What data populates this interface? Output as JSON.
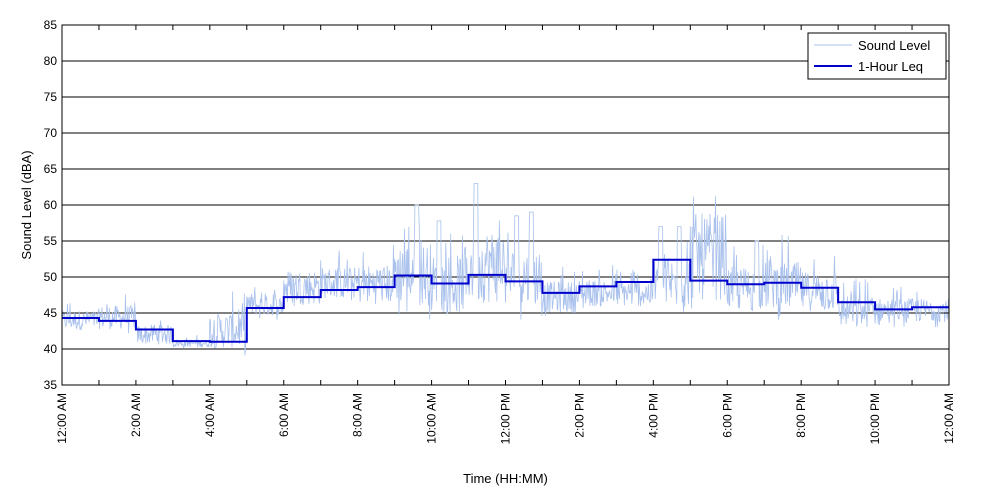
{
  "chart_data": {
    "type": "line",
    "title": "",
    "xlabel": "Time (HH:MM)",
    "ylabel": "Sound Level (dBA)",
    "ylim": [
      35,
      85
    ],
    "yticks": [
      35,
      40,
      45,
      50,
      55,
      60,
      65,
      70,
      75,
      80,
      85
    ],
    "xlim_hours": [
      0,
      24
    ],
    "xticks": [
      {
        "hour": 0,
        "label": "12:00 AM"
      },
      {
        "hour": 2,
        "label": "2:00 AM"
      },
      {
        "hour": 4,
        "label": "4:00 AM"
      },
      {
        "hour": 6,
        "label": "6:00 AM"
      },
      {
        "hour": 8,
        "label": "8:00 AM"
      },
      {
        "hour": 10,
        "label": "10:00 AM"
      },
      {
        "hour": 12,
        "label": "12:00 PM"
      },
      {
        "hour": 14,
        "label": "2:00 PM"
      },
      {
        "hour": 16,
        "label": "4:00 PM"
      },
      {
        "hour": 18,
        "label": "6:00 PM"
      },
      {
        "hour": 20,
        "label": "8:00 PM"
      },
      {
        "hour": 22,
        "label": "10:00 PM"
      },
      {
        "hour": 24,
        "label": "12:00 AM"
      }
    ],
    "grid": "horizontal",
    "legend_position": "top-right",
    "series": [
      {
        "name": "Sound Level",
        "color": "#a9c1ec",
        "hourly_range": [
          [
            42,
            47
          ],
          [
            42,
            48
          ],
          [
            40,
            45
          ],
          [
            40,
            42
          ],
          [
            39,
            48
          ],
          [
            44,
            49
          ],
          [
            45,
            54
          ],
          [
            46,
            54
          ],
          [
            45,
            55
          ],
          [
            44,
            60
          ],
          [
            43,
            58
          ],
          [
            44,
            63
          ],
          [
            44,
            59
          ],
          [
            44,
            52
          ],
          [
            45,
            52
          ],
          [
            45,
            52
          ],
          [
            44,
            57
          ],
          [
            44,
            66
          ],
          [
            44,
            55
          ],
          [
            44,
            56
          ],
          [
            44,
            54
          ],
          [
            42,
            50
          ],
          [
            43,
            49
          ],
          [
            43,
            49
          ]
        ],
        "peaks": [
          {
            "hour": 9.6,
            "value": 60.5
          },
          {
            "hour": 10.2,
            "value": 57.8
          },
          {
            "hour": 11.2,
            "value": 63
          },
          {
            "hour": 12.3,
            "value": 58.5
          },
          {
            "hour": 12.7,
            "value": 59.5
          },
          {
            "hour": 16.2,
            "value": 57
          },
          {
            "hour": 16.7,
            "value": 66
          },
          {
            "hour": 18.8,
            "value": 55.5
          }
        ]
      },
      {
        "name": "1-Hour Leq",
        "color": "#0000cc",
        "step_values": [
          44.3,
          43.9,
          42.7,
          41.1,
          41.0,
          45.7,
          47.2,
          48.2,
          48.6,
          50.2,
          49.1,
          50.3,
          49.4,
          47.8,
          48.7,
          49.3,
          52.4,
          49.5,
          49.0,
          49.2,
          48.5,
          46.5,
          45.5,
          45.8
        ]
      }
    ]
  }
}
